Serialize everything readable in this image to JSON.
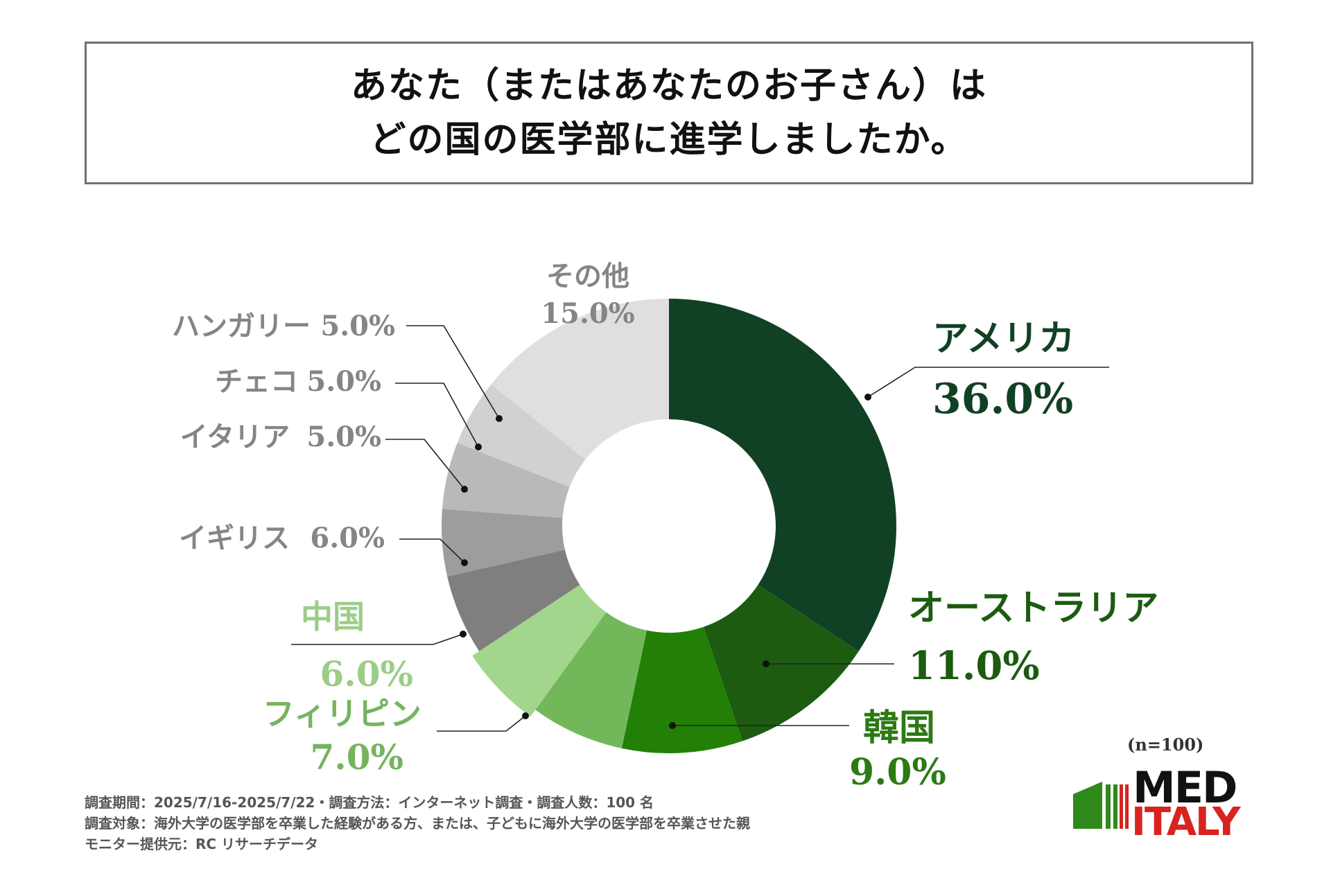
{
  "title": {
    "line1": "あなた（またはあなたのお子さん）は",
    "line2": "どの国の医学部に進学しましたか。"
  },
  "chart_data": {
    "type": "pie",
    "donut": true,
    "slices": [
      {
        "label": "アメリカ",
        "value": 36.0,
        "value_label": "36.0%",
        "color": "#114124",
        "text_color": "#114124"
      },
      {
        "label": "オーストラリア",
        "value": 11.0,
        "value_label": "11.0%",
        "color": "#1c5b10",
        "text_color": "#1c5b10"
      },
      {
        "label": "韓国",
        "value": 9.0,
        "value_label": "9.0%",
        "color": "#238007",
        "text_color": "#2d7a13"
      },
      {
        "label": "フィリピン",
        "value": 7.0,
        "value_label": "7.0%",
        "color": "#73b75b",
        "text_color": "#76b35f"
      },
      {
        "label": "中国",
        "value": 6.0,
        "value_label": "6.0%",
        "color": "#a2d68d",
        "text_color": "#9ccd86"
      },
      {
        "label": "イギリス",
        "value": 6.0,
        "value_label": "6.0%",
        "color": "#7f7f7f",
        "text_color": "#858585"
      },
      {
        "label": "イタリア",
        "value": 5.0,
        "value_label": "5.0%",
        "color": "#9d9d9d",
        "text_color": "#858585"
      },
      {
        "label": "チェコ",
        "value": 5.0,
        "value_label": "5.0%",
        "color": "#b9b9b9",
        "text_color": "#858585"
      },
      {
        "label": "ハンガリー",
        "value": 5.0,
        "value_label": "5.0%",
        "color": "#d1d1d1",
        "text_color": "#858585"
      },
      {
        "label": "その他",
        "value": 15.0,
        "value_label": "15.0%",
        "color": "#dfdfdf",
        "text_color": "#858585"
      }
    ]
  },
  "sample_size": "(n=100)",
  "footnotes": [
    "調査期間：2025/7/16-2025/7/22・調査方法：インターネット調査・調査人数：100 名",
    "調査対象：海外大学の医学部を卒業した経験がある方、または、子どもに海外大学の医学部を卒業させた親",
    "モニター提供元：RC リサーチデータ"
  ],
  "logo": {
    "line1": "MED",
    "line2": "ITALY",
    "green": "#2f8a1b",
    "red": "#d8231f"
  }
}
